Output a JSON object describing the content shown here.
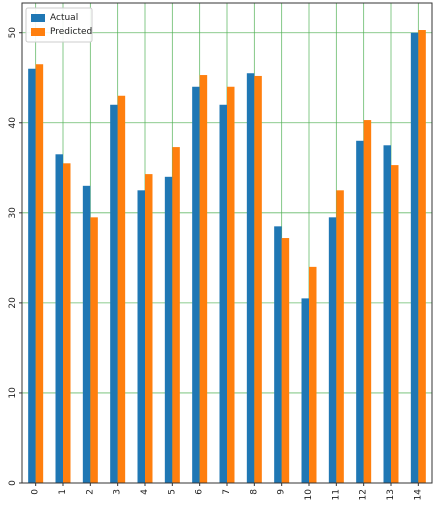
{
  "chart_data": {
    "type": "bar",
    "categories": [
      "0",
      "1",
      "2",
      "3",
      "4",
      "5",
      "6",
      "7",
      "8",
      "9",
      "10",
      "11",
      "12",
      "13",
      "14"
    ],
    "series": [
      {
        "name": "Actual",
        "color": "#1f77b4",
        "values": [
          46,
          36.5,
          33,
          42,
          32.5,
          34,
          44,
          42,
          45.5,
          28.5,
          20.5,
          29.5,
          38,
          37.5,
          50
        ]
      },
      {
        "name": "Predicted",
        "color": "#ff7f0e",
        "values": [
          46.5,
          35.5,
          29.5,
          43,
          34.3,
          37.3,
          45.3,
          44,
          45.2,
          27.2,
          24,
          32.5,
          40.3,
          35.3,
          50.3
        ]
      }
    ],
    "yticks": [
      "0",
      "10",
      "20",
      "30",
      "40",
      "50"
    ],
    "ylim": [
      0,
      53.3
    ],
    "grid": true,
    "grid_color": "#4caf50",
    "legend_position": "top-left",
    "title": "",
    "xlabel": "",
    "ylabel": ""
  }
}
